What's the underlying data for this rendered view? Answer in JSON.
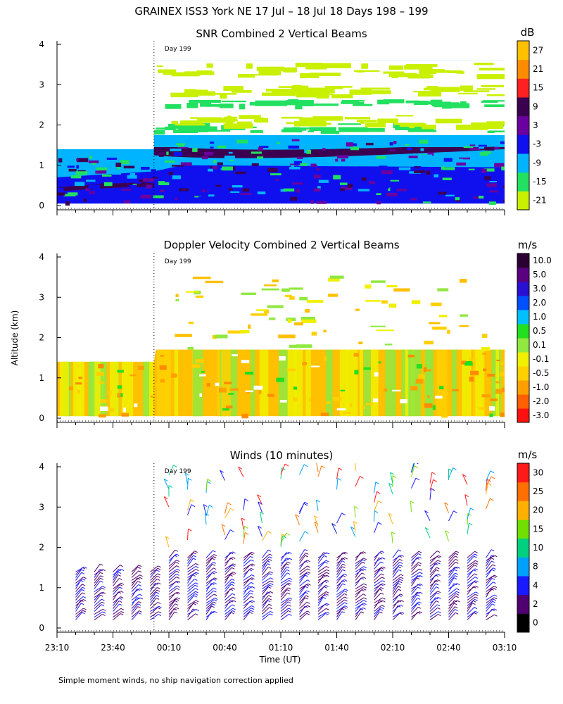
{
  "title": "GRAINEX ISS3 York NE   17 Jul – 18 Jul 18 Days 198 – 199",
  "ylabel": "Altitude (km)",
  "xlabel": "Time (UT)",
  "footnote": "Simple moment winds, no ship navigation correction applied",
  "day_marker_label": "Day 199",
  "chart_data": [
    {
      "type": "heatmap",
      "title": "SNR Combined 2 Vertical Beams",
      "colorbar_unit": "dB",
      "colorbar_ticks": [
        "27",
        "21",
        "15",
        "9",
        "3",
        "-3",
        "-9",
        "-15",
        "-21"
      ],
      "colorbar_colors": [
        "#ffc000",
        "#ff8c00",
        "#ff2020",
        "#3c0050",
        "#6a00a0",
        "#1010ee",
        "#00b4ff",
        "#22e060",
        "#c8f000"
      ],
      "x_ticks": [
        "23:10",
        "23:40",
        "00:10",
        "00:40",
        "01:10",
        "01:40",
        "02:10",
        "02:40",
        "03:10"
      ],
      "y_ticks": [
        "0",
        "1",
        "2",
        "3",
        "4"
      ],
      "xlim": [
        "23:10",
        "03:10"
      ],
      "ylim": [
        0,
        4
      ],
      "day_marker_time": "00:02",
      "coverage": [
        {
          "time": "23:10",
          "top_km": 1.4
        },
        {
          "time": "00:02",
          "top_km": 1.4
        },
        {
          "time": "00:03",
          "top_km": 3.6
        },
        {
          "time": "03:10",
          "top_km": 3.6
        }
      ]
    },
    {
      "type": "heatmap",
      "title": "Doppler Velocity Combined 2 Vertical Beams",
      "colorbar_unit": "m/s",
      "colorbar_ticks": [
        "10.0",
        "5.0",
        "3.0",
        "2.0",
        "1.0",
        "0.5",
        "0.1",
        "-0.1",
        "-0.5",
        "-1.0",
        "-2.0",
        "-3.0"
      ],
      "colorbar_colors": [
        "#2a0033",
        "#5a0080",
        "#2a10d0",
        "#0050ff",
        "#00c0ff",
        "#22e020",
        "#90e840",
        "#f0f000",
        "#ffd000",
        "#ffa000",
        "#ff6000",
        "#ff1010"
      ],
      "x_ticks": [
        "23:10",
        "23:40",
        "00:10",
        "00:40",
        "01:10",
        "01:40",
        "02:10",
        "02:40",
        "03:10"
      ],
      "y_ticks": [
        "0",
        "1",
        "2",
        "3",
        "4"
      ],
      "xlim": [
        "23:10",
        "03:10"
      ],
      "ylim": [
        0,
        4
      ],
      "day_marker_time": "00:02",
      "coverage": [
        {
          "time": "23:10",
          "top_km": 1.4
        },
        {
          "time": "00:02",
          "top_km": 1.4
        },
        {
          "time": "00:03",
          "top_km": 1.7
        },
        {
          "time": "03:10",
          "top_km": 1.7
        }
      ]
    },
    {
      "type": "scatter",
      "title": "Winds (10 minutes)",
      "colorbar_unit": "m/s",
      "colorbar_ticks": [
        "30",
        "25",
        "20",
        "15",
        "10",
        "8",
        "4",
        "2",
        "0"
      ],
      "colorbar_colors": [
        "#ff1a1a",
        "#ff7000",
        "#ffb000",
        "#70e000",
        "#00d080",
        "#00a0ff",
        "#1a1aff",
        "#500070",
        "#000000"
      ],
      "x_ticks": [
        "23:10",
        "23:40",
        "00:10",
        "00:40",
        "01:10",
        "01:40",
        "02:10",
        "02:40",
        "03:10"
      ],
      "y_ticks": [
        "0",
        "1",
        "2",
        "3",
        "4"
      ],
      "xlim": [
        "23:10",
        "03:10"
      ],
      "ylim": [
        0,
        4
      ],
      "day_marker_time": "00:02",
      "profile_times": [
        "23:20",
        "23:30",
        "23:40",
        "23:50",
        "00:00",
        "00:10",
        "00:20",
        "00:30",
        "00:40",
        "00:50",
        "01:00",
        "01:10",
        "01:20",
        "01:30",
        "01:40",
        "01:50",
        "02:00",
        "02:10",
        "02:20",
        "02:30",
        "02:40",
        "02:50",
        "03:00"
      ]
    }
  ]
}
